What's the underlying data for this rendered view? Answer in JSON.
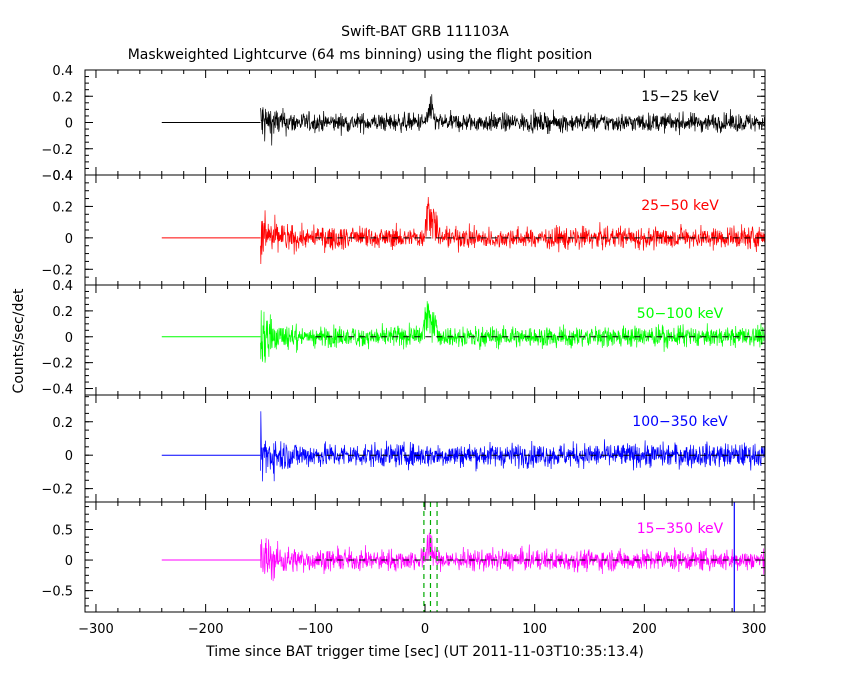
{
  "title": "Swift-BAT GRB 111103A",
  "subtitle": "Maskweighted Lightcurve (64 ms binning) using the flight position",
  "xlabel": "Time since BAT trigger time [sec] (UT 2011-11-03T10:35:13.4)",
  "ylabel": "Counts/sec/det",
  "colors": {
    "frame": "#000000",
    "dashed_zero": "#000000",
    "t90_start": "#00aa00",
    "t90_stop": "#00aa00",
    "marker": "#0000ff"
  },
  "chart_data": [
    {
      "type": "line",
      "panel": "15-25 keV",
      "series": [
        {
          "name": "15−25 keV",
          "color": "#000000"
        }
      ],
      "xlim": [
        -310,
        310
      ],
      "ylim": [
        -0.4,
        0.4
      ],
      "yticks": [
        -0.4,
        -0.2,
        0,
        0.2,
        0.4
      ],
      "yticklabels": [
        "−0.4",
        "−0.2",
        "0",
        "0.2",
        "0.4"
      ],
      "flat_segment": {
        "x": [
          -240,
          -150
        ],
        "y": 0
      },
      "noise_onset": -150,
      "noise_amplitude": {
        "start": 0.28,
        "steady": 0.09,
        "decay_s": 12
      },
      "features": [
        {
          "x": 5,
          "peak": 0.25
        }
      ]
    },
    {
      "type": "line",
      "panel": "25-50 keV",
      "series": [
        {
          "name": "25−50 keV",
          "color": "#ff0000"
        }
      ],
      "xlim": [
        -310,
        310
      ],
      "ylim": [
        -0.3,
        0.4
      ],
      "yticks": [
        -0.2,
        0,
        0.2,
        0.4
      ],
      "yticklabels": [
        "−0.2",
        "0",
        "0.2",
        "0.4"
      ],
      "flat_segment": {
        "x": [
          -240,
          -150
        ],
        "y": 0
      },
      "noise_onset": -150,
      "noise_amplitude": {
        "start": 0.28,
        "steady": 0.09,
        "decay_s": 12
      },
      "features": [
        {
          "x": 3,
          "peak": 0.38
        },
        {
          "x": 9,
          "peak": 0.26
        }
      ]
    },
    {
      "type": "line",
      "panel": "50-100 keV",
      "series": [
        {
          "name": "50−100 keV",
          "color": "#00ff00"
        }
      ],
      "xlim": [
        -310,
        310
      ],
      "ylim": [
        -0.45,
        0.4
      ],
      "yticks": [
        -0.4,
        -0.2,
        0,
        0.2,
        0.4
      ],
      "yticklabels": [
        "−0.4",
        "−0.2",
        "0",
        "0.2",
        "0.4"
      ],
      "flat_segment": {
        "x": [
          -240,
          -150
        ],
        "y": 0
      },
      "noise_onset": -150,
      "noise_amplitude": {
        "start": 0.34,
        "steady": 0.1,
        "decay_s": 12
      },
      "features": [
        {
          "x": 2,
          "peak": 0.42
        },
        {
          "x": 8,
          "peak": 0.3
        }
      ]
    },
    {
      "type": "line",
      "panel": "100-350 keV",
      "series": [
        {
          "name": "100−350 keV",
          "color": "#0000ff"
        }
      ],
      "xlim": [
        -310,
        310
      ],
      "ylim": [
        -0.28,
        0.36
      ],
      "yticks": [
        -0.2,
        0,
        0.2
      ],
      "yticklabels": [
        "−0.2",
        "0",
        "0.2"
      ],
      "flat_segment": {
        "x": [
          -240,
          -150
        ],
        "y": 0
      },
      "noise_onset": -150,
      "noise_amplitude": {
        "start": 0.26,
        "steady": 0.09,
        "decay_s": 12
      },
      "features": []
    },
    {
      "type": "line",
      "panel": "15-350 keV",
      "series": [
        {
          "name": "15−350 keV",
          "color": "#ff00ff"
        }
      ],
      "xlim": [
        -310,
        310
      ],
      "ylim": [
        -0.85,
        0.95
      ],
      "yticks": [
        -0.5,
        0,
        0.5
      ],
      "yticklabels": [
        "−0.5",
        "0",
        "0.5"
      ],
      "flat_segment": {
        "x": [
          -240,
          -150
        ],
        "y": 0
      },
      "noise_onset": -150,
      "noise_amplitude": {
        "start": 0.7,
        "steady": 0.22,
        "decay_s": 12
      },
      "features": [
        {
          "x": 4,
          "peak": 0.75
        }
      ],
      "vlines": [
        {
          "x": -1,
          "color": "#00aa00",
          "dash": true
        },
        {
          "x": 5,
          "color": "#00aa00",
          "dash": true
        },
        {
          "x": 11,
          "color": "#00aa00",
          "dash": true
        },
        {
          "x": 282,
          "color": "#0000ff",
          "dash": false
        }
      ]
    }
  ],
  "xticks": [
    -300,
    -200,
    -100,
    0,
    100,
    200,
    300
  ],
  "xticklabels": [
    "−300",
    "−200",
    "−100",
    "0",
    "100",
    "200",
    "300"
  ],
  "dashed_zero_from": -100
}
